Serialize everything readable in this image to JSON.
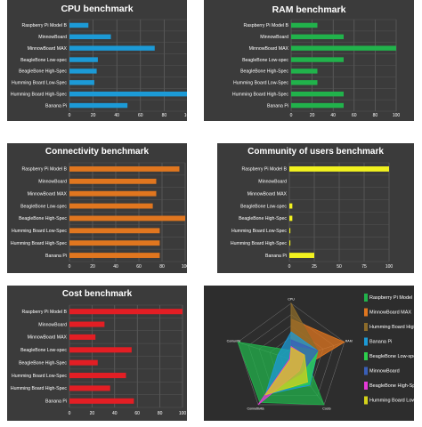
{
  "chart_data": [
    {
      "type": "bar",
      "orientation": "horizontal",
      "title": "CPU benchmark",
      "categories": [
        "Raspberry Pi Model B",
        "MinnowBoard",
        "MinnowBoard MAX",
        "BeagleBone Low-spec",
        "BeagleBone High-Spec",
        "Humming Board Low-Spec",
        "Humming Board High-Spec",
        "Banana Pi"
      ],
      "values": [
        16,
        35,
        72,
        24,
        23,
        21,
        100,
        49
      ],
      "xlim": [
        0,
        100
      ],
      "xticks": [
        "0",
        "20",
        "40",
        "60",
        "80",
        "100"
      ],
      "color": "#1c9ad6",
      "grid": true
    },
    {
      "type": "bar",
      "orientation": "horizontal",
      "title": "RAM benchmark",
      "categories": [
        "Raspberry Pi Model B",
        "MinnowBoard",
        "MinnowBoard MAX",
        "BeagleBone Low-spec",
        "BeagleBone High-Spec",
        "Humming Board Low-Spec",
        "Humming Board High-Spec",
        "Banana Pi"
      ],
      "values": [
        25,
        50,
        100,
        50,
        25,
        25,
        50,
        50
      ],
      "xlim": [
        0,
        100
      ],
      "xticks": [
        "0",
        "20",
        "40",
        "60",
        "80",
        "100"
      ],
      "color": "#21b24b",
      "grid": true
    },
    {
      "type": "bar",
      "orientation": "horizontal",
      "title": "Connectivity benchmark",
      "categories": [
        "Raspberry Pi Model B",
        "MinnowBoard",
        "MinnowBoard MAX",
        "BeagleBone Low-spec",
        "BeagleBone High-Spec",
        "Humming Board Low-Spec",
        "Humming Board High-Spec",
        "Banana Pi"
      ],
      "values": [
        95,
        75,
        75,
        72,
        100,
        78,
        78,
        78
      ],
      "xlim": [
        0,
        100
      ],
      "xticks": [
        "0",
        "20",
        "40",
        "60",
        "80",
        "100"
      ],
      "color": "#e0761f",
      "grid": true
    },
    {
      "type": "bar",
      "orientation": "horizontal",
      "title": "Community of users benchmark",
      "categories": [
        "Raspberry Pi Model B",
        "MinnowBoard",
        "MinnowBoard MAX",
        "BeagleBone Low-spec",
        "BeagleBone High-Spec",
        "Humming Board Low-Spec",
        "Humming Board High-Spec",
        "Banana Pi"
      ],
      "values": [
        100,
        0,
        0,
        3,
        3,
        1,
        1,
        25
      ],
      "xlim": [
        0,
        100
      ],
      "xticks": [
        "0",
        "25",
        "50",
        "75",
        "100"
      ],
      "color": "#f2f21f",
      "grid": true
    },
    {
      "type": "bar",
      "orientation": "horizontal",
      "title": "Cost benchmark",
      "categories": [
        "Raspberry Pi Model B",
        "MinnowBoard",
        "MinnowBoard MAX",
        "BeagleBone Low-spec",
        "BeagleBone High-Spec",
        "Humming Board Low-Spec",
        "Humming Board High-Spec",
        "Banana Pi"
      ],
      "values": [
        100,
        31,
        23,
        55,
        25,
        50,
        36,
        57
      ],
      "xlim": [
        0,
        100
      ],
      "xticks": [
        "0",
        "20",
        "40",
        "60",
        "80",
        "100"
      ],
      "color": "#e31e24",
      "grid": true
    },
    {
      "type": "radar",
      "axes": [
        "CPU",
        "RAM",
        "Cost",
        "Connectivity",
        "Community"
      ],
      "axis_labels": [
        "CPU",
        "RAM",
        "Costo",
        "Connettività",
        "Comunità"
      ],
      "rmax": 100,
      "legend_position": "right",
      "series": [
        {
          "name": "Raspberry Pi Model B",
          "color": "#21b24b",
          "values": [
            16,
            25,
            100,
            95,
            100
          ]
        },
        {
          "name": "MinnowBoard MAX",
          "color": "#e0761f",
          "values": [
            72,
            100,
            23,
            75,
            0
          ]
        },
        {
          "name": "Humming Board High-Spec",
          "color": "#8c6b2a",
          "values": [
            100,
            50,
            36,
            78,
            1
          ]
        },
        {
          "name": "Banana Pi",
          "color": "#1c9ad6",
          "values": [
            49,
            50,
            57,
            78,
            25
          ]
        },
        {
          "name": "BeagleBone Low-spec",
          "color": "#2ccf4c",
          "values": [
            24,
            50,
            55,
            72,
            3
          ]
        },
        {
          "name": "MinnowBoard",
          "color": "#3a5fb8",
          "values": [
            35,
            50,
            31,
            75,
            0
          ]
        },
        {
          "name": "BeagleBone High-Spec",
          "color": "#e53ad8",
          "values": [
            23,
            25,
            25,
            100,
            3
          ]
        },
        {
          "name": "Humming Board Low-Spec",
          "color": "#d4d21a",
          "values": [
            21,
            25,
            50,
            78,
            1
          ]
        }
      ]
    }
  ]
}
